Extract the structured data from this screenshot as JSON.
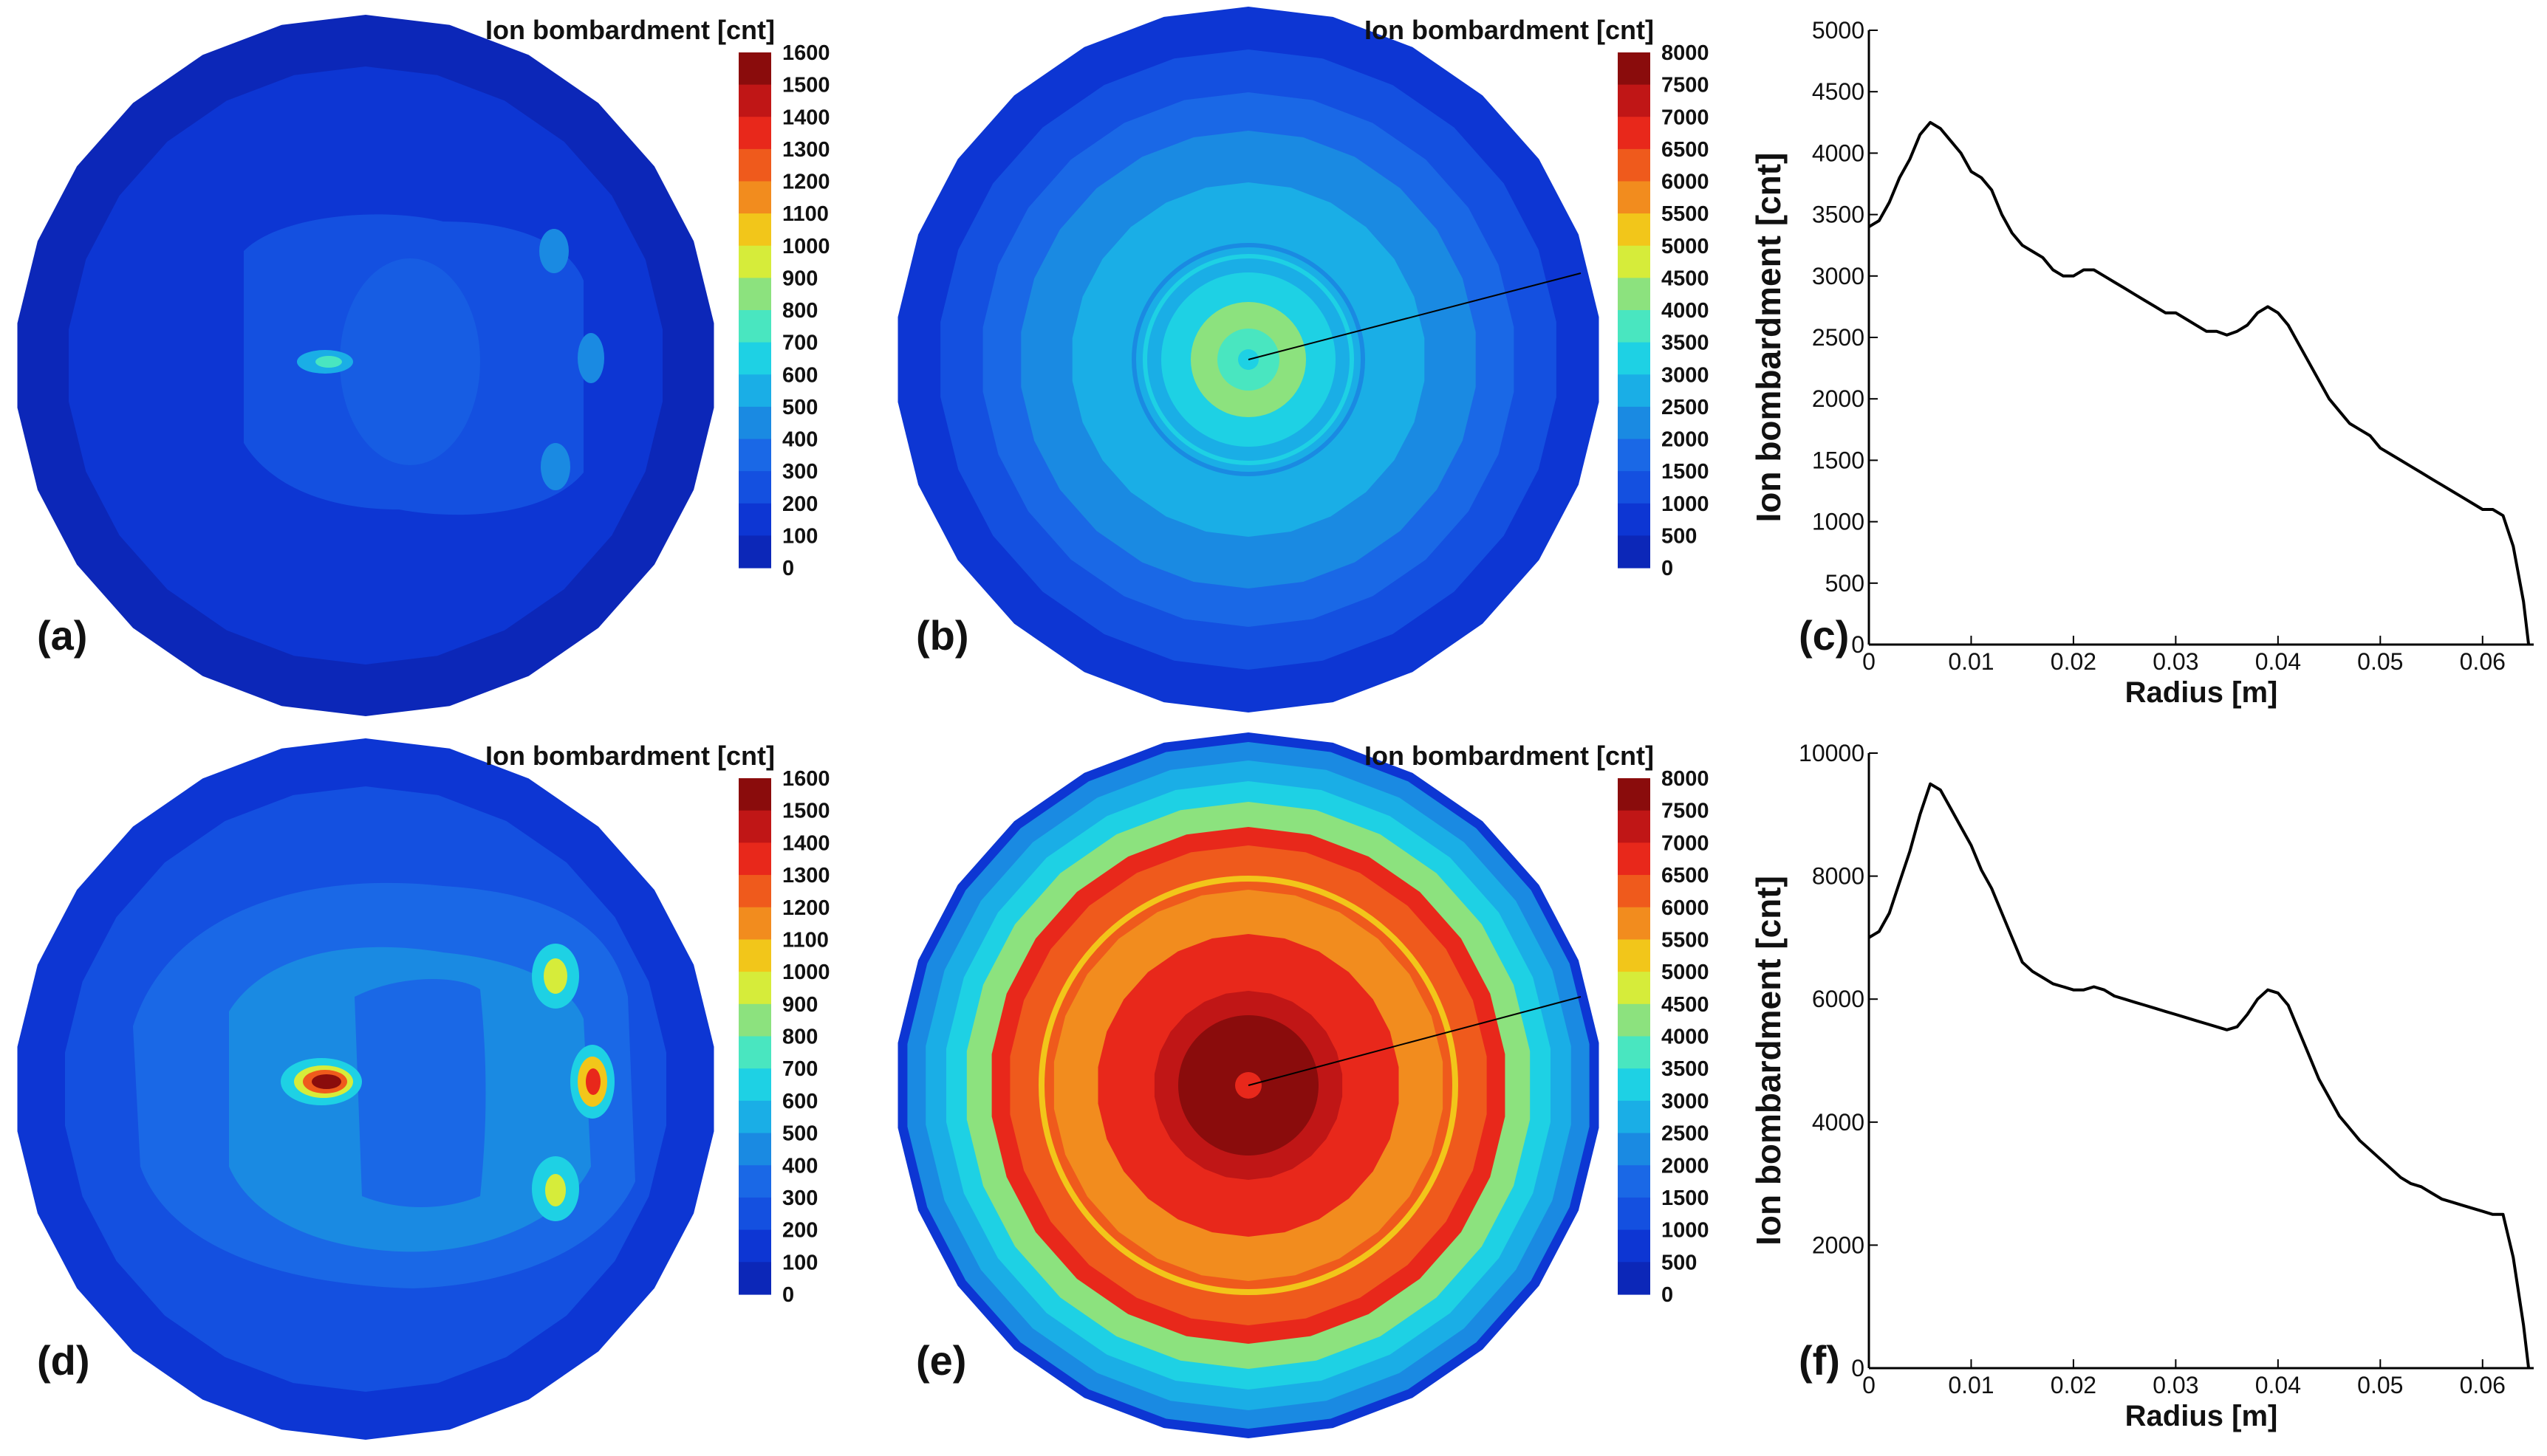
{
  "colors": {
    "colormap": [
      "#0b1a88",
      "#0c27b8",
      "#0d36d3",
      "#1450e0",
      "#1a68e6",
      "#1a8ae2",
      "#1aaee6",
      "#1ed1e4",
      "#49e6c0",
      "#8ce27e",
      "#d6ec3a",
      "#f2c61a",
      "#f28c1e",
      "#ef5a1c",
      "#e8281b",
      "#c01616",
      "#8a0c0c"
    ],
    "line": "#000000",
    "background": "#ffffff"
  },
  "chart_data": [
    {
      "panel": "(a)",
      "type": "heatmap",
      "title": "Ion bombardment [cnt]",
      "colorbar_ticks": [
        "1600",
        "1500",
        "1400",
        "1300",
        "1200",
        "1100",
        "1000",
        "900",
        "800",
        "700",
        "600",
        "500",
        "400",
        "300",
        "200",
        "100",
        "0"
      ],
      "colorbar_range": [
        0,
        1600
      ]
    },
    {
      "panel": "(b)",
      "type": "heatmap",
      "title": "Ion bombardment [cnt]",
      "colorbar_ticks": [
        "8000",
        "7500",
        "7000",
        "6500",
        "6000",
        "5500",
        "5000",
        "4500",
        "4000",
        "3500",
        "3000",
        "2500",
        "2000",
        "1500",
        "1000",
        "500",
        "0"
      ],
      "colorbar_range": [
        0,
        8000
      ]
    },
    {
      "panel": "(c)",
      "type": "line",
      "xlabel": "Radius [m]",
      "ylabel": "Ion bombardment [cnt]",
      "xlim": [
        0,
        0.065
      ],
      "ylim": [
        0,
        5000
      ],
      "xticks": [
        "0",
        "0.01",
        "0.02",
        "0.03",
        "0.04",
        "0.05",
        "0.06"
      ],
      "yticks": [
        "0",
        "500",
        "1000",
        "1500",
        "2000",
        "2500",
        "3000",
        "3500",
        "4000",
        "4500",
        "5000"
      ],
      "x": [
        0,
        0.001,
        0.002,
        0.003,
        0.004,
        0.005,
        0.006,
        0.007,
        0.008,
        0.009,
        0.01,
        0.011,
        0.012,
        0.013,
        0.014,
        0.015,
        0.016,
        0.017,
        0.018,
        0.019,
        0.02,
        0.021,
        0.022,
        0.023,
        0.024,
        0.025,
        0.026,
        0.027,
        0.028,
        0.029,
        0.03,
        0.031,
        0.032,
        0.033,
        0.034,
        0.035,
        0.036,
        0.037,
        0.038,
        0.039,
        0.04,
        0.041,
        0.042,
        0.043,
        0.044,
        0.045,
        0.046,
        0.047,
        0.048,
        0.049,
        0.05,
        0.051,
        0.052,
        0.053,
        0.054,
        0.055,
        0.056,
        0.057,
        0.058,
        0.059,
        0.06,
        0.061,
        0.062,
        0.063,
        0.064,
        0.0645
      ],
      "y": [
        3400,
        3450,
        3600,
        3800,
        3950,
        4150,
        4250,
        4200,
        4100,
        4000,
        3850,
        3800,
        3700,
        3500,
        3350,
        3250,
        3200,
        3150,
        3050,
        3000,
        3000,
        3050,
        3050,
        3000,
        2950,
        2900,
        2850,
        2800,
        2750,
        2700,
        2700,
        2650,
        2600,
        2550,
        2550,
        2520,
        2550,
        2600,
        2700,
        2750,
        2700,
        2600,
        2450,
        2300,
        2150,
        2000,
        1900,
        1800,
        1750,
        1700,
        1600,
        1550,
        1500,
        1450,
        1400,
        1350,
        1300,
        1250,
        1200,
        1150,
        1100,
        1100,
        1050,
        800,
        350,
        0
      ]
    },
    {
      "panel": "(d)",
      "type": "heatmap",
      "title": "Ion bombardment [cnt]",
      "colorbar_ticks": [
        "1600",
        "1500",
        "1400",
        "1300",
        "1200",
        "1100",
        "1000",
        "900",
        "800",
        "700",
        "600",
        "500",
        "400",
        "300",
        "200",
        "100",
        "0"
      ],
      "colorbar_range": [
        0,
        1600
      ]
    },
    {
      "panel": "(e)",
      "type": "heatmap",
      "title": "Ion bombardment [cnt]",
      "colorbar_ticks": [
        "8000",
        "7500",
        "7000",
        "6500",
        "6000",
        "5500",
        "5000",
        "4500",
        "4000",
        "3500",
        "3000",
        "2500",
        "2000",
        "1500",
        "1000",
        "500",
        "0"
      ],
      "colorbar_range": [
        0,
        8000
      ]
    },
    {
      "panel": "(f)",
      "type": "line",
      "xlabel": "Radius [m]",
      "ylabel": "Ion bombardment [cnt]",
      "xlim": [
        0,
        0.065
      ],
      "ylim": [
        0,
        10000
      ],
      "xticks": [
        "0",
        "0.01",
        "0.02",
        "0.03",
        "0.04",
        "0.05",
        "0.06"
      ],
      "yticks": [
        "0",
        "2000",
        "4000",
        "6000",
        "8000",
        "10000"
      ],
      "x": [
        0,
        0.001,
        0.002,
        0.003,
        0.004,
        0.005,
        0.006,
        0.007,
        0.008,
        0.009,
        0.01,
        0.011,
        0.012,
        0.013,
        0.014,
        0.015,
        0.016,
        0.017,
        0.018,
        0.019,
        0.02,
        0.021,
        0.022,
        0.023,
        0.024,
        0.025,
        0.026,
        0.027,
        0.028,
        0.029,
        0.03,
        0.031,
        0.032,
        0.033,
        0.034,
        0.035,
        0.036,
        0.037,
        0.038,
        0.039,
        0.04,
        0.041,
        0.042,
        0.043,
        0.044,
        0.045,
        0.046,
        0.047,
        0.048,
        0.049,
        0.05,
        0.051,
        0.052,
        0.053,
        0.054,
        0.055,
        0.056,
        0.057,
        0.058,
        0.059,
        0.06,
        0.061,
        0.062,
        0.063,
        0.064,
        0.0645
      ],
      "y": [
        7000,
        7100,
        7400,
        7900,
        8400,
        9000,
        9500,
        9400,
        9100,
        8800,
        8500,
        8100,
        7800,
        7400,
        7000,
        6600,
        6450,
        6350,
        6250,
        6200,
        6150,
        6150,
        6200,
        6150,
        6050,
        6000,
        5950,
        5900,
        5850,
        5800,
        5750,
        5700,
        5650,
        5600,
        5550,
        5500,
        5550,
        5750,
        6000,
        6150,
        6100,
        5900,
        5500,
        5100,
        4700,
        4400,
        4100,
        3900,
        3700,
        3550,
        3400,
        3250,
        3100,
        3000,
        2950,
        2850,
        2750,
        2700,
        2650,
        2600,
        2550,
        2500,
        2500,
        1800,
        700,
        0
      ]
    }
  ]
}
